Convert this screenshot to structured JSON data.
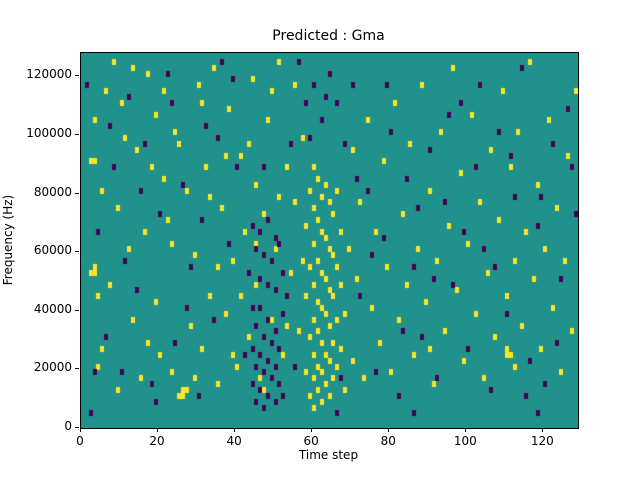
{
  "figure": {
    "title": "Predicted : Gma",
    "xlabel": "Time step",
    "ylabel": "Frequency (Hz)"
  },
  "chart_data": {
    "type": "heatmap",
    "title": "Predicted : Gma",
    "xlabel": "Time step",
    "ylabel": "Frequency (Hz)",
    "x_range": [
      0,
      129
    ],
    "y_range": [
      0,
      128000
    ],
    "x_ticks": [
      0,
      20,
      40,
      60,
      80,
      100,
      120
    ],
    "y_ticks": [
      0,
      20000,
      40000,
      60000,
      80000,
      100000,
      120000
    ],
    "grid": {
      "cols": 129,
      "rows": 64,
      "cell_time": 1,
      "cell_hz": 2000
    },
    "legend": "none",
    "colors": {
      "background": "#21918c",
      "high": "#fde725",
      "low": "#440154"
    },
    "cells_high_xy": [
      2,
      26,
      3,
      26,
      3,
      27,
      4,
      22,
      4,
      10,
      5,
      40,
      2,
      45,
      3,
      45,
      6,
      57,
      8,
      62,
      10,
      55,
      12,
      30,
      13,
      18,
      14,
      47,
      15,
      8,
      16,
      33,
      17,
      60,
      18,
      44,
      19,
      21,
      20,
      12,
      21,
      57,
      22,
      35,
      23,
      9,
      24,
      50,
      25,
      5,
      26,
      5,
      26,
      6,
      27,
      6,
      27,
      40,
      28,
      17,
      29,
      29,
      30,
      58,
      31,
      13,
      32,
      44,
      33,
      22,
      34,
      61,
      35,
      7,
      36,
      37,
      37,
      19,
      38,
      54,
      39,
      28,
      40,
      10,
      41,
      46,
      42,
      33,
      43,
      15,
      44,
      59,
      45,
      24,
      45,
      41,
      46,
      8,
      47,
      36,
      48,
      52,
      49,
      18,
      50,
      30,
      51,
      62,
      52,
      12,
      53,
      44,
      54,
      26,
      55,
      38,
      56,
      16,
      57,
      49,
      58,
      9,
      58,
      22,
      58,
      34,
      59,
      5,
      59,
      15,
      59,
      27,
      59,
      40,
      60,
      3,
      60,
      8,
      60,
      12,
      60,
      18,
      60,
      24,
      60,
      31,
      60,
      37,
      60,
      44,
      61,
      6,
      61,
      10,
      61,
      16,
      61,
      21,
      61,
      28,
      61,
      35,
      61,
      42,
      62,
      4,
      62,
      9,
      62,
      14,
      62,
      20,
      62,
      26,
      62,
      33,
      62,
      39,
      63,
      7,
      63,
      12,
      63,
      19,
      63,
      25,
      63,
      32,
      63,
      41,
      64,
      5,
      64,
      11,
      64,
      17,
      64,
      23,
      64,
      30,
      64,
      38,
      65,
      8,
      65,
      14,
      65,
      22,
      65,
      29,
      65,
      36,
      66,
      10,
      66,
      18,
      66,
      27,
      66,
      40,
      67,
      13,
      67,
      24,
      67,
      33,
      68,
      6,
      68,
      19,
      69,
      30,
      70,
      11,
      70,
      47,
      71,
      25,
      72,
      38,
      73,
      8,
      74,
      52,
      75,
      20,
      76,
      33,
      77,
      14,
      78,
      45,
      79,
      27,
      80,
      9,
      81,
      55,
      82,
      18,
      83,
      36,
      84,
      24,
      85,
      48,
      86,
      12,
      87,
      30,
      88,
      58,
      89,
      21,
      90,
      40,
      91,
      7,
      92,
      28,
      93,
      50,
      94,
      16,
      95,
      34,
      96,
      61,
      97,
      23,
      98,
      43,
      99,
      11,
      100,
      31,
      101,
      53,
      102,
      19,
      103,
      38,
      104,
      8,
      105,
      26,
      106,
      47,
      107,
      15,
      108,
      35,
      109,
      57,
      110,
      22,
      111,
      44,
      112,
      10,
      112,
      28,
      113,
      50,
      114,
      17,
      115,
      33,
      116,
      62,
      117,
      25,
      118,
      41,
      119,
      13,
      120,
      30,
      121,
      52,
      122,
      20,
      123,
      37,
      124,
      9,
      125,
      28,
      126,
      46,
      127,
      16,
      128,
      57,
      5,
      13,
      9,
      37,
      11,
      49,
      7,
      24,
      19,
      53,
      23,
      31,
      31,
      55,
      35,
      27,
      39,
      12,
      43,
      48,
      47,
      6,
      51,
      39,
      55,
      58,
      3,
      52,
      13,
      61,
      21,
      42,
      29,
      8,
      37,
      46,
      45,
      31,
      53,
      17,
      57,
      28,
      49,
      57,
      41,
      22,
      33,
      39,
      25,
      48,
      17,
      14,
      9,
      6,
      90,
      13,
      110,
      12,
      111,
      12,
      110,
      13
    ],
    "cells_low_xy": [
      1,
      58,
      4,
      33,
      6,
      15,
      8,
      44,
      10,
      9,
      12,
      56,
      14,
      23,
      16,
      48,
      18,
      7,
      20,
      36,
      22,
      60,
      24,
      14,
      26,
      41,
      28,
      27,
      30,
      5,
      32,
      51,
      34,
      18,
      36,
      62,
      38,
      31,
      40,
      44,
      42,
      12,
      44,
      7,
      44,
      13,
      45,
      4,
      45,
      10,
      45,
      17,
      46,
      6,
      46,
      12,
      46,
      20,
      47,
      3,
      47,
      9,
      47,
      15,
      48,
      5,
      48,
      11,
      48,
      18,
      49,
      8,
      49,
      14,
      50,
      4,
      50,
      10,
      50,
      16,
      51,
      7,
      51,
      13,
      52,
      5,
      52,
      19,
      46,
      25,
      48,
      24,
      50,
      23,
      54,
      48,
      56,
      62,
      58,
      55,
      60,
      58,
      62,
      52,
      64,
      60,
      66,
      55,
      68,
      48,
      70,
      58,
      72,
      22,
      74,
      40,
      76,
      9,
      78,
      32,
      80,
      50,
      82,
      5,
      84,
      42,
      86,
      27,
      88,
      15,
      90,
      47,
      92,
      8,
      94,
      38,
      96,
      24,
      98,
      55,
      100,
      13,
      102,
      44,
      104,
      30,
      106,
      6,
      108,
      50,
      110,
      19,
      112,
      39,
      114,
      61,
      116,
      11,
      118,
      34,
      120,
      7,
      122,
      48,
      124,
      25,
      126,
      54,
      128,
      36,
      3,
      9,
      7,
      51,
      11,
      28,
      15,
      40,
      19,
      4,
      23,
      55,
      27,
      20,
      31,
      35,
      35,
      49,
      39,
      59,
      43,
      26,
      47,
      44,
      51,
      31,
      55,
      10,
      59,
      49,
      63,
      56,
      67,
      8,
      71,
      42,
      75,
      29,
      79,
      58,
      83,
      16,
      87,
      37,
      91,
      25,
      95,
      53,
      99,
      33,
      103,
      58,
      107,
      27,
      111,
      46,
      115,
      5,
      119,
      39,
      123,
      14,
      127,
      44,
      2,
      2,
      66,
      2,
      86,
      2,
      118,
      2,
      44,
      34,
      45,
      30,
      46,
      33,
      47,
      29,
      48,
      35,
      49,
      28,
      50,
      32,
      44,
      20,
      52,
      26,
      53,
      22
    ]
  }
}
